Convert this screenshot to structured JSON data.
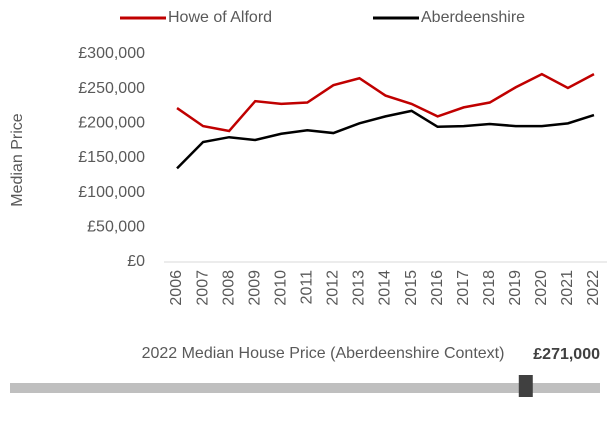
{
  "chart_data": {
    "type": "line",
    "categories": [
      "2006",
      "2007",
      "2008",
      "2009",
      "2010",
      "2011",
      "2012",
      "2013",
      "2014",
      "2015",
      "2016",
      "2017",
      "2018",
      "2019",
      "2020",
      "2021",
      "2022"
    ],
    "series": [
      {
        "name": "Howe of Alford",
        "color": "#c00000",
        "values": [
          222000,
          196000,
          189000,
          232000,
          228000,
          230000,
          255000,
          265000,
          240000,
          228000,
          210000,
          223000,
          230000,
          252000,
          271000,
          251000,
          271000
        ]
      },
      {
        "name": "Aberdeenshire",
        "color": "#000000",
        "values": [
          135000,
          173000,
          180000,
          176000,
          185000,
          190000,
          186000,
          200000,
          210000,
          218000,
          195000,
          196000,
          199000,
          196000,
          196000,
          200000,
          212000
        ]
      }
    ],
    "y_label": "Median Price",
    "ylim": [
      0,
      300000
    ],
    "yticks": [
      {
        "value": 0,
        "label": "£0"
      },
      {
        "value": 50000,
        "label": "£50,000"
      },
      {
        "value": 100000,
        "label": "£100,000"
      },
      {
        "value": 150000,
        "label": "£150,000"
      },
      {
        "value": 200000,
        "label": "£200,000"
      },
      {
        "value": 250000,
        "label": "£250,000"
      },
      {
        "value": 300000,
        "label": "£300,000"
      }
    ],
    "grid": false,
    "legend": "top",
    "indicator": {
      "title": "2022 Median House Price (Aberdeenshire Context)",
      "value": 271000,
      "value_label": "£271,000",
      "xlim": [
        0,
        310000
      ],
      "color": "#bfbfbf",
      "marker_color": "#404040"
    }
  }
}
